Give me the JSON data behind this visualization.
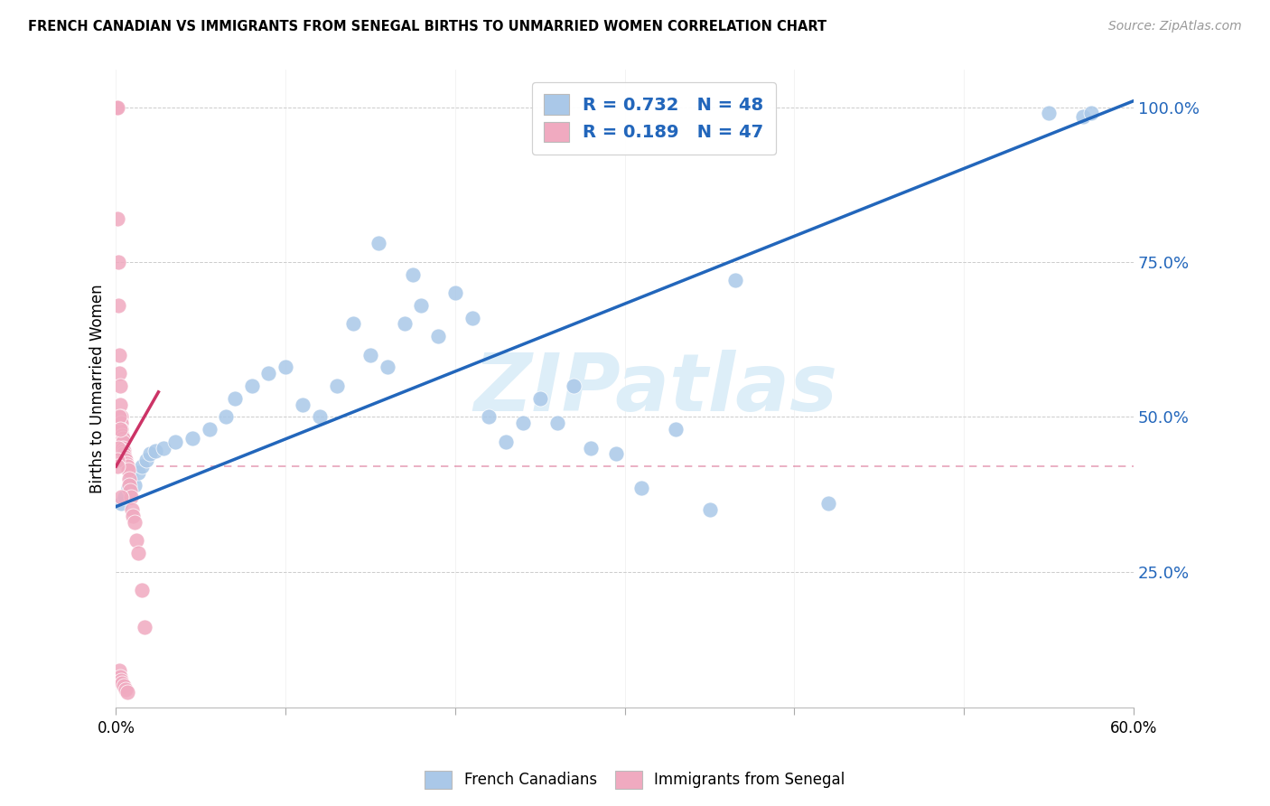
{
  "title": "FRENCH CANADIAN VS IMMIGRANTS FROM SENEGAL BIRTHS TO UNMARRIED WOMEN CORRELATION CHART",
  "source": "Source: ZipAtlas.com",
  "ylabel": "Births to Unmarried Women",
  "xlim": [
    0.0,
    60.0
  ],
  "ylim": [
    3.0,
    106.0
  ],
  "yticks": [
    25.0,
    50.0,
    75.0,
    100.0
  ],
  "xticks": [
    0.0,
    10.0,
    20.0,
    30.0,
    40.0,
    50.0,
    60.0
  ],
  "blue_color": "#aac8e8",
  "pink_color": "#f0aac0",
  "line_blue_color": "#2266bb",
  "line_pink_color": "#cc3366",
  "watermark_color": "#ddeef8",
  "watermark": "ZIPatlas",
  "blue_R": "0.732",
  "blue_N": "48",
  "pink_R": "0.189",
  "pink_N": "47",
  "blue_x": [
    0.3,
    0.5,
    0.7,
    0.9,
    1.1,
    1.3,
    1.5,
    1.8,
    2.0,
    2.3,
    2.8,
    3.5,
    4.5,
    5.5,
    6.5,
    7.0,
    8.0,
    9.0,
    10.0,
    11.0,
    12.0,
    13.0,
    14.0,
    15.0,
    16.0,
    17.0,
    18.0,
    19.0,
    20.0,
    21.0,
    22.0,
    23.0,
    24.0,
    25.0,
    26.0,
    27.0,
    28.0,
    29.5,
    31.0,
    33.0,
    35.0,
    36.5,
    42.0,
    55.0,
    57.0,
    57.5,
    15.5,
    17.5
  ],
  "blue_y": [
    36.0,
    37.0,
    38.5,
    40.0,
    39.0,
    41.0,
    42.0,
    43.0,
    44.0,
    44.5,
    45.0,
    46.0,
    46.5,
    48.0,
    50.0,
    53.0,
    55.0,
    57.0,
    58.0,
    52.0,
    50.0,
    55.0,
    65.0,
    60.0,
    58.0,
    65.0,
    68.0,
    63.0,
    70.0,
    66.0,
    50.0,
    46.0,
    49.0,
    53.0,
    49.0,
    55.0,
    45.0,
    44.0,
    38.5,
    48.0,
    35.0,
    72.0,
    36.0,
    99.0,
    98.5,
    99.0,
    78.0,
    73.0
  ],
  "pink_x": [
    0.05,
    0.08,
    0.1,
    0.12,
    0.15,
    0.18,
    0.2,
    0.22,
    0.25,
    0.28,
    0.3,
    0.32,
    0.35,
    0.38,
    0.4,
    0.42,
    0.45,
    0.48,
    0.5,
    0.55,
    0.6,
    0.65,
    0.7,
    0.75,
    0.8,
    0.85,
    0.9,
    0.95,
    1.0,
    1.1,
    1.2,
    1.3,
    1.5,
    1.7,
    0.2,
    0.25,
    0.3,
    0.35,
    0.45,
    0.55,
    0.65,
    0.18,
    0.22,
    0.12,
    0.08,
    0.1,
    0.3
  ],
  "pink_y": [
    100.0,
    100.0,
    82.0,
    75.0,
    68.0,
    60.0,
    57.0,
    55.0,
    52.0,
    50.0,
    49.0,
    48.0,
    47.0,
    46.5,
    46.0,
    45.0,
    44.5,
    44.0,
    43.5,
    43.0,
    42.5,
    42.0,
    41.5,
    40.0,
    39.0,
    38.0,
    37.0,
    35.0,
    34.0,
    33.0,
    30.0,
    28.0,
    22.0,
    16.0,
    9.0,
    8.0,
    7.5,
    7.0,
    6.5,
    6.0,
    5.5,
    50.0,
    48.0,
    45.0,
    43.0,
    42.0,
    37.0
  ],
  "blue_line_x0": 0.0,
  "blue_line_y0": 35.5,
  "blue_line_x1": 60.0,
  "blue_line_y1": 101.0,
  "pink_solid_x0": 0.0,
  "pink_solid_y0": 42.0,
  "pink_solid_x1": 2.5,
  "pink_solid_y1": 54.0,
  "pink_dash_x0": 0.0,
  "pink_dash_y0": 42.0,
  "pink_dash_x1": 60.0,
  "pink_dash_y1": 42.0
}
